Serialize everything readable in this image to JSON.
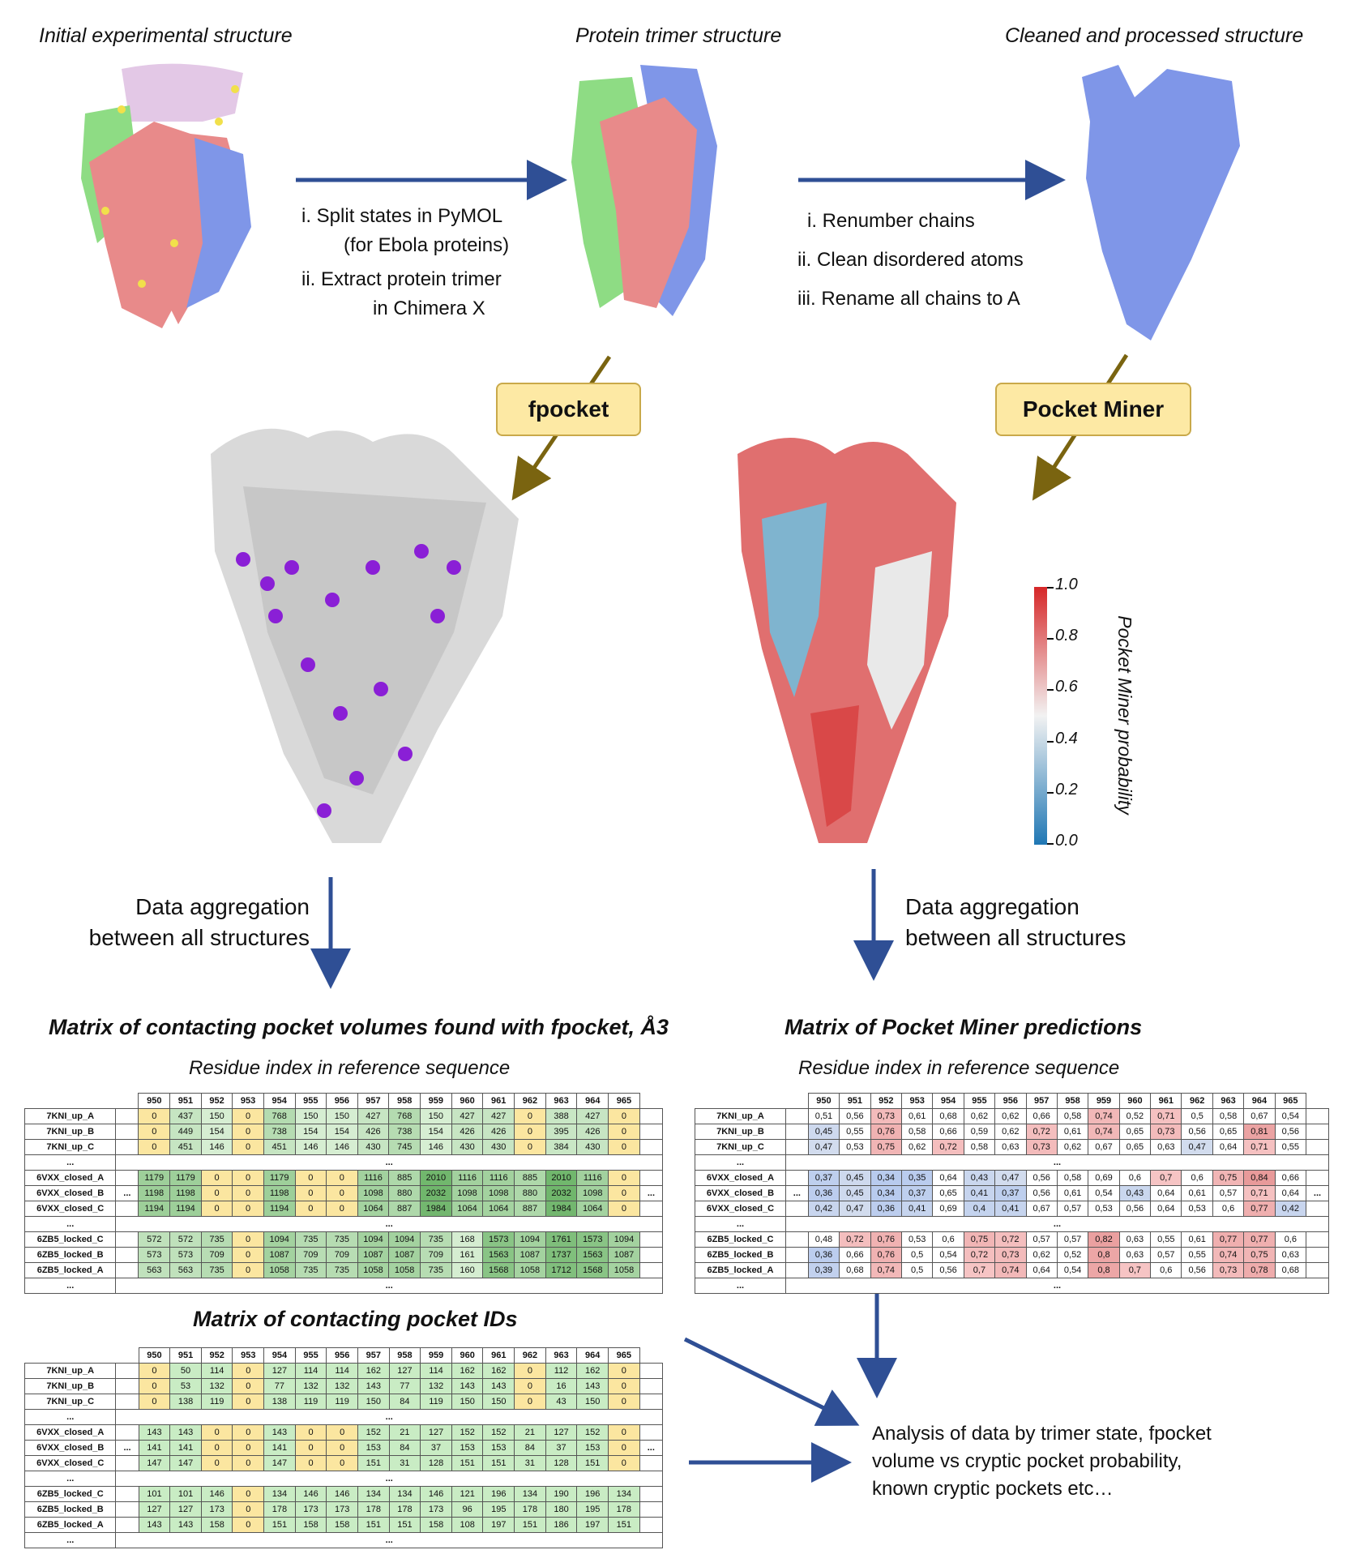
{
  "stages": {
    "initial": "Initial experimental structure",
    "trimer": "Protein trimer structure",
    "cleaned": "Cleaned and processed structure"
  },
  "steps1": [
    "i.   Split states in PyMOL",
    "(for Ebola proteins)",
    "ii.   Extract protein trimer",
    "in Chimera X"
  ],
  "steps2": [
    "i.    Renumber chains",
    "ii.   Clean disordered atoms",
    "iii.  Rename all chains to A"
  ],
  "tools": {
    "fpocket": "fpocket",
    "pocketminer": "Pocket Miner"
  },
  "colorbar": {
    "label": "Pocket Miner probability",
    "ticks": [
      "1.0",
      "0.8",
      "0.6",
      "0.4",
      "0.2",
      "0.0"
    ],
    "colors": {
      "high": "#d62728",
      "mid": "#f2f2f2",
      "low": "#1f77b4"
    }
  },
  "aggregation": {
    "left": [
      "Data aggregation",
      "between all structures"
    ],
    "right": [
      "Data aggregation",
      "between all structures"
    ]
  },
  "matrices": {
    "volumes_title": "Matrix of contacting pocket volumes found with fpocket, Å3",
    "pm_title": "Matrix of Pocket Miner predictions",
    "ids_title": "Matrix of contacting pocket IDs",
    "residue_label": "Residue index in reference sequence",
    "columns": [
      "950",
      "951",
      "952",
      "953",
      "954",
      "955",
      "956",
      "957",
      "958",
      "959",
      "960",
      "961",
      "962",
      "963",
      "964",
      "965"
    ],
    "row_labels": [
      "7KNI_up_A",
      "7KNI_up_B",
      "7KNI_up_C",
      "6VXX_closed_A",
      "6VXX_closed_B",
      "6VXX_closed_C",
      "6ZB5_locked_C",
      "6ZB5_locked_B",
      "6ZB5_locked_A"
    ],
    "ellipsis": "...",
    "volumes": [
      [
        "0",
        "437",
        "150",
        "0",
        "768",
        "150",
        "150",
        "427",
        "768",
        "150",
        "427",
        "427",
        "0",
        "388",
        "427",
        "0"
      ],
      [
        "0",
        "449",
        "154",
        "0",
        "738",
        "154",
        "154",
        "426",
        "738",
        "154",
        "426",
        "426",
        "0",
        "395",
        "426",
        "0"
      ],
      [
        "0",
        "451",
        "146",
        "0",
        "451",
        "146",
        "146",
        "430",
        "745",
        "146",
        "430",
        "430",
        "0",
        "384",
        "430",
        "0"
      ],
      [
        "1179",
        "1179",
        "0",
        "0",
        "1179",
        "0",
        "0",
        "1116",
        "885",
        "2010",
        "1116",
        "1116",
        "885",
        "2010",
        "1116",
        "0"
      ],
      [
        "1198",
        "1198",
        "0",
        "0",
        "1198",
        "0",
        "0",
        "1098",
        "880",
        "2032",
        "1098",
        "1098",
        "880",
        "2032",
        "1098",
        "0"
      ],
      [
        "1194",
        "1194",
        "0",
        "0",
        "1194",
        "0",
        "0",
        "1064",
        "887",
        "1984",
        "1064",
        "1064",
        "887",
        "1984",
        "1064",
        "0"
      ],
      [
        "572",
        "572",
        "735",
        "0",
        "1094",
        "735",
        "735",
        "1094",
        "1094",
        "735",
        "168",
        "1573",
        "1094",
        "1761",
        "1573",
        "1094"
      ],
      [
        "573",
        "573",
        "709",
        "0",
        "1087",
        "709",
        "709",
        "1087",
        "1087",
        "709",
        "161",
        "1563",
        "1087",
        "1737",
        "1563",
        "1087"
      ],
      [
        "563",
        "563",
        "735",
        "0",
        "1058",
        "735",
        "735",
        "1058",
        "1058",
        "735",
        "160",
        "1568",
        "1058",
        "1712",
        "1568",
        "1058"
      ]
    ],
    "pm": [
      [
        "0,51",
        "0,56",
        "0,73",
        "0,61",
        "0,68",
        "0,62",
        "0,62",
        "0,66",
        "0,58",
        "0,74",
        "0,52",
        "0,71",
        "0,5",
        "0,58",
        "0,67",
        "0,54"
      ],
      [
        "0,45",
        "0,55",
        "0,76",
        "0,58",
        "0,66",
        "0,59",
        "0,62",
        "0,72",
        "0,61",
        "0,74",
        "0,65",
        "0,73",
        "0,56",
        "0,65",
        "0,81",
        "0,56"
      ],
      [
        "0,47",
        "0,53",
        "0,75",
        "0,62",
        "0,72",
        "0,58",
        "0,63",
        "0,73",
        "0,62",
        "0,67",
        "0,65",
        "0,63",
        "0,47",
        "0,64",
        "0,71",
        "0,55"
      ],
      [
        "0,37",
        "0,45",
        "0,34",
        "0,35",
        "0,64",
        "0,43",
        "0,47",
        "0,56",
        "0,58",
        "0,69",
        "0,6",
        "0,7",
        "0,6",
        "0,75",
        "0,84",
        "0,66"
      ],
      [
        "0,36",
        "0,45",
        "0,34",
        "0,37",
        "0,65",
        "0,41",
        "0,37",
        "0,56",
        "0,61",
        "0,54",
        "0,43",
        "0,64",
        "0,61",
        "0,57",
        "0,71",
        "0,64"
      ],
      [
        "0,42",
        "0,47",
        "0,36",
        "0,41",
        "0,69",
        "0,4",
        "0,41",
        "0,67",
        "0,57",
        "0,53",
        "0,56",
        "0,64",
        "0,53",
        "0,6",
        "0,77",
        "0,42"
      ],
      [
        "0,48",
        "0,72",
        "0,76",
        "0,53",
        "0,6",
        "0,75",
        "0,72",
        "0,57",
        "0,57",
        "0,82",
        "0,63",
        "0,55",
        "0,61",
        "0,77",
        "0,77",
        "0,6"
      ],
      [
        "0,36",
        "0,66",
        "0,76",
        "0,5",
        "0,54",
        "0,72",
        "0,73",
        "0,62",
        "0,52",
        "0,8",
        "0,63",
        "0,57",
        "0,55",
        "0,74",
        "0,75",
        "0,63"
      ],
      [
        "0,39",
        "0,68",
        "0,74",
        "0,5",
        "0,56",
        "0,7",
        "0,74",
        "0,64",
        "0,54",
        "0,8",
        "0,7",
        "0,6",
        "0,56",
        "0,73",
        "0,78",
        "0,68"
      ]
    ],
    "ids": [
      [
        "0",
        "50",
        "114",
        "0",
        "127",
        "114",
        "114",
        "162",
        "127",
        "114",
        "162",
        "162",
        "0",
        "112",
        "162",
        "0"
      ],
      [
        "0",
        "53",
        "132",
        "0",
        "77",
        "132",
        "132",
        "143",
        "77",
        "132",
        "143",
        "143",
        "0",
        "16",
        "143",
        "0"
      ],
      [
        "0",
        "138",
        "119",
        "0",
        "138",
        "119",
        "119",
        "150",
        "84",
        "119",
        "150",
        "150",
        "0",
        "43",
        "150",
        "0"
      ],
      [
        "143",
        "143",
        "0",
        "0",
        "143",
        "0",
        "0",
        "152",
        "21",
        "127",
        "152",
        "152",
        "21",
        "127",
        "152",
        "0"
      ],
      [
        "141",
        "141",
        "0",
        "0",
        "141",
        "0",
        "0",
        "153",
        "84",
        "37",
        "153",
        "153",
        "84",
        "37",
        "153",
        "0"
      ],
      [
        "147",
        "147",
        "0",
        "0",
        "147",
        "0",
        "0",
        "151",
        "31",
        "128",
        "151",
        "151",
        "31",
        "128",
        "151",
        "0"
      ],
      [
        "101",
        "101",
        "146",
        "0",
        "134",
        "146",
        "146",
        "134",
        "134",
        "146",
        "121",
        "196",
        "134",
        "190",
        "196",
        "134"
      ],
      [
        "127",
        "127",
        "173",
        "0",
        "178",
        "173",
        "173",
        "178",
        "178",
        "173",
        "96",
        "195",
        "178",
        "180",
        "195",
        "178"
      ],
      [
        "143",
        "143",
        "158",
        "0",
        "151",
        "158",
        "158",
        "151",
        "151",
        "158",
        "108",
        "197",
        "151",
        "186",
        "197",
        "151"
      ]
    ]
  },
  "analysis": [
    "Analysis of data by trimer state, fpocket",
    "volume vs cryptic pocket probability,",
    "known cryptic pockets etc…"
  ]
}
